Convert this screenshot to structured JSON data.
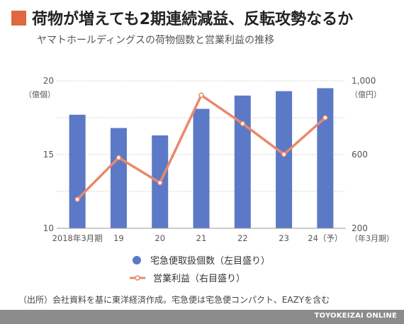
{
  "header": {
    "title": "荷物が増えても2期連続減益、反転攻勢なるか",
    "subtitle": "ヤマトホールディングスの荷物個数と営業利益の推移"
  },
  "chart_data": {
    "type": "bar",
    "categories": [
      "2018年3月期",
      "19",
      "20",
      "21",
      "22",
      "23",
      "24（予）"
    ],
    "series": [
      {
        "name": "宅急便取扱個数（左目盛り）",
        "type": "bar",
        "axis": "left",
        "values": [
          17.7,
          16.8,
          16.3,
          18.1,
          19.0,
          19.3,
          19.5
        ]
      },
      {
        "name": "営業利益（右目盛り）",
        "type": "line",
        "axis": "right",
        "values": [
          357,
          583,
          447,
          922,
          768,
          601,
          800
        ]
      }
    ],
    "y_left": {
      "label": "（億個）",
      "ylim": [
        10,
        20
      ],
      "ticks": [
        "10",
        "15",
        "20"
      ]
    },
    "y_right": {
      "label": "（億円）",
      "ylim": [
        200,
        1000
      ],
      "ticks": [
        "200",
        "600",
        "1,000"
      ]
    },
    "x_unit": "（年3月期）",
    "grid": true,
    "legend_position": "bottom"
  },
  "colors": {
    "bar": "#5b79c6",
    "line": "#e8896b",
    "accent": "#e0673e"
  },
  "note": "（出所）会社資料を基に東洋経済作成。宅急便は宅急便コンパクト、EAZYを含む",
  "footer": {
    "brand": "TOYOKEIZAI ONLINE"
  }
}
